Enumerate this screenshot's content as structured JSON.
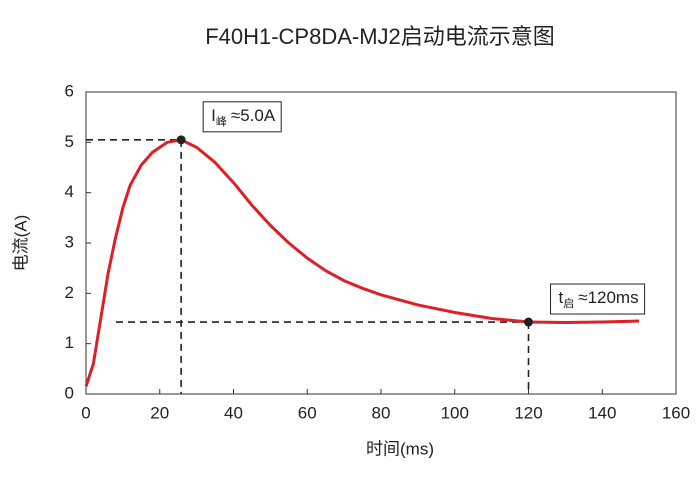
{
  "chart_data": {
    "type": "line",
    "title": "F40H1-CP8DA-MJ2启动电流示意图",
    "x_label": "时间(ms)",
    "y_label": "电流(A)",
    "x": [
      0,
      2,
      4,
      6,
      8,
      10,
      12,
      15,
      18,
      22,
      25.8,
      30,
      35,
      40,
      45,
      50,
      55,
      60,
      65,
      70,
      75,
      80,
      90,
      100,
      110,
      120,
      130,
      140,
      150
    ],
    "series": [
      {
        "color": "#dd1f26",
        "values": [
          0.15,
          0.6,
          1.5,
          2.4,
          3.1,
          3.7,
          4.15,
          4.55,
          4.8,
          5.0,
          5.05,
          4.9,
          4.6,
          4.2,
          3.75,
          3.35,
          3.0,
          2.7,
          2.45,
          2.25,
          2.1,
          1.97,
          1.77,
          1.62,
          1.5,
          1.43,
          1.42,
          1.43,
          1.45
        ]
      }
    ],
    "xlim": [
      0,
      160
    ],
    "xticks": [
      0,
      20,
      40,
      60,
      80,
      100,
      120,
      140,
      160
    ],
    "ylim": [
      0,
      6
    ],
    "yticks": [
      0,
      1,
      2,
      3,
      4,
      5,
      6
    ],
    "annotations": [
      {
        "x": 25.8,
        "y": 5.05,
        "text": "I",
        "subscript": "峰",
        "suffix": "≈5.0A"
      },
      {
        "x": 120,
        "y": 1.43,
        "text": "t",
        "subscript": "启",
        "suffix": "≈120ms"
      }
    ]
  }
}
